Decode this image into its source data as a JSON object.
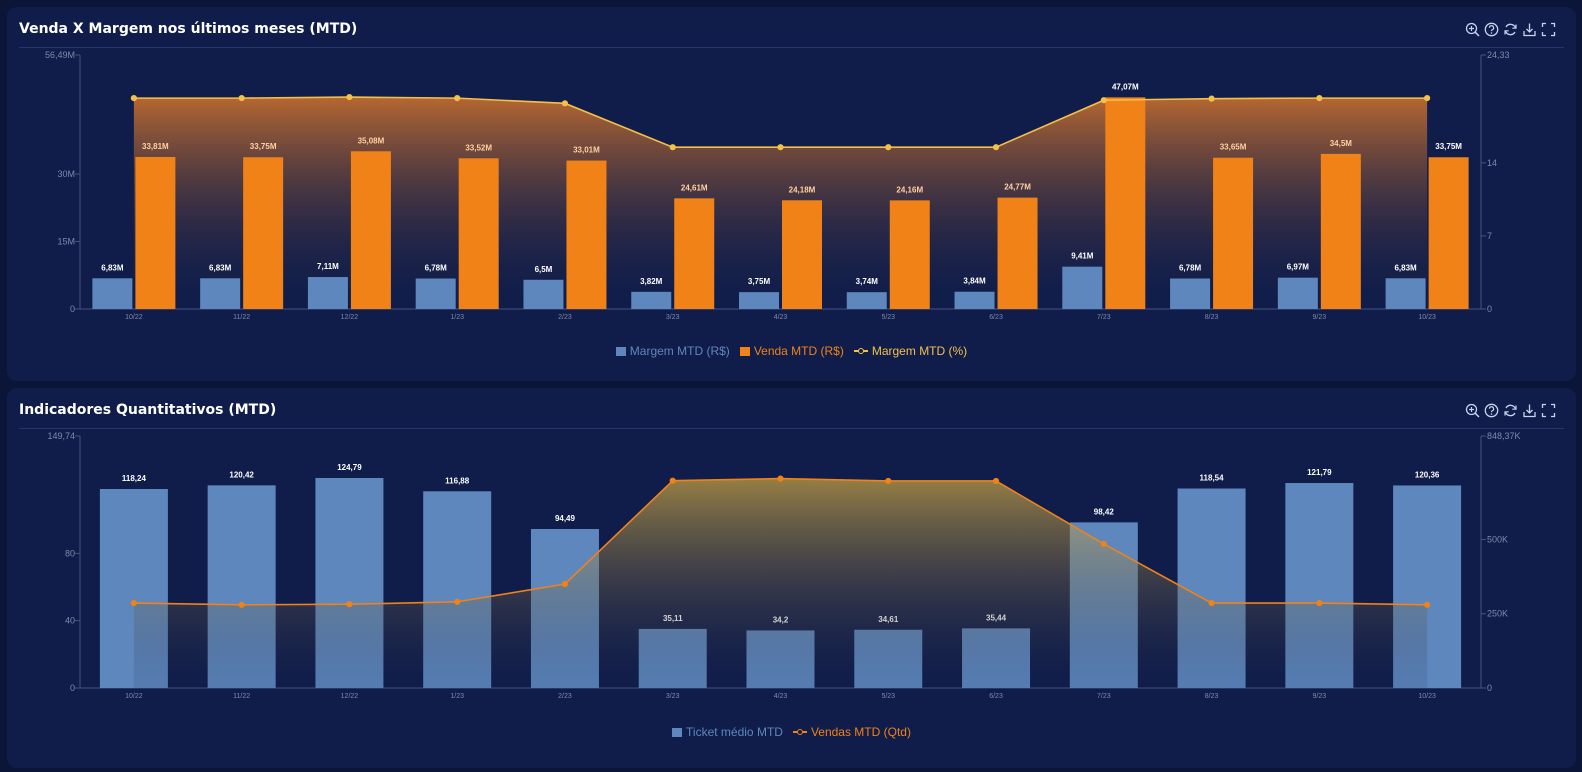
{
  "colors": {
    "margem": "#5d87bd",
    "venda": "#f08218",
    "pct_line": "#f3c04a",
    "ticket": "#5d87bd",
    "vendas_qtd": "#f08218",
    "axis_text": "#7e89ab"
  },
  "icons": [
    "zoom-in-icon",
    "help-icon",
    "refresh-icon",
    "download-icon",
    "fullscreen-icon"
  ],
  "panel1": {
    "title": "Venda X Margem nos últimos meses (MTD)",
    "legend": [
      "Margem MTD (R$)",
      "Venda MTD (R$)",
      "Margem MTD (%)"
    ]
  },
  "panel2": {
    "title": "Indicadores Quantitativos (MTD)",
    "legend": [
      "Ticket médio MTD",
      "Vendas MTD (Qtd)"
    ]
  },
  "chart_data": [
    {
      "type": "bar",
      "title": "Venda X Margem nos últimos meses (MTD)",
      "categories": [
        "10/22",
        "11/22",
        "12/22",
        "1/23",
        "2/23",
        "3/23",
        "4/23",
        "5/23",
        "6/23",
        "7/23",
        "8/23",
        "9/23",
        "10/23"
      ],
      "left_axis": {
        "ticks": [
          "0",
          "15M",
          "30M",
          "56,49M"
        ],
        "ylim": [
          0,
          56.49
        ]
      },
      "right_axis": {
        "ticks": [
          "0",
          "7",
          "14",
          "24,33"
        ],
        "ylim": [
          0,
          24.33
        ]
      },
      "series": [
        {
          "name": "Margem MTD (R$)",
          "type": "bar",
          "axis": "left",
          "values": [
            6.83,
            6.83,
            7.11,
            6.78,
            6.5,
            3.82,
            3.75,
            3.74,
            3.84,
            9.41,
            6.78,
            6.97,
            6.83
          ],
          "labels": [
            "6,83M",
            "6,83M",
            "7,11M",
            "6,78M",
            "6,5M",
            "3,82M",
            "3,75M",
            "3,74M",
            "3,84M",
            "9,41M",
            "6,78M",
            "6,97M",
            "6,83M"
          ]
        },
        {
          "name": "Venda MTD (R$)",
          "type": "bar",
          "axis": "left",
          "values": [
            33.81,
            33.75,
            35.08,
            33.52,
            33.01,
            24.61,
            24.18,
            24.16,
            24.77,
            47.07,
            33.65,
            34.5,
            33.75
          ],
          "labels": [
            "33,81M",
            "33,75M",
            "35,08M",
            "33,52M",
            "33,01M",
            "24,61M",
            "24,18M",
            "24,16M",
            "24,77M",
            "47,07M",
            "33,65M",
            "34,5M",
            "33,75M"
          ]
        },
        {
          "name": "Margem MTD (%)",
          "type": "area-line",
          "axis": "right",
          "values": [
            20.2,
            20.2,
            20.3,
            20.2,
            19.7,
            15.5,
            15.5,
            15.5,
            15.5,
            20.0,
            20.15,
            20.2,
            20.2
          ]
        }
      ]
    },
    {
      "type": "bar",
      "title": "Indicadores Quantitativos (MTD)",
      "categories": [
        "10/22",
        "11/22",
        "12/22",
        "1/23",
        "2/23",
        "3/23",
        "4/23",
        "5/23",
        "6/23",
        "7/23",
        "8/23",
        "9/23",
        "10/23"
      ],
      "left_axis": {
        "ticks": [
          "0",
          "40",
          "80",
          "149,74"
        ],
        "ylim": [
          0,
          149.74
        ]
      },
      "right_axis": {
        "ticks": [
          "0",
          "250K",
          "500K",
          "848,37K"
        ],
        "ylim": [
          0,
          848.37
        ]
      },
      "series": [
        {
          "name": "Ticket médio MTD",
          "type": "bar",
          "axis": "left",
          "values": [
            118.24,
            120.42,
            124.79,
            116.88,
            94.49,
            35.11,
            34.2,
            34.61,
            35.44,
            98.42,
            118.54,
            121.79,
            120.36
          ],
          "labels": [
            "118,24",
            "120,42",
            "124,79",
            "116,88",
            "94,49",
            "35,11",
            "34,2",
            "34,61",
            "35,44",
            "98,42",
            "118,54",
            "121,79",
            "120,36"
          ]
        },
        {
          "name": "Vendas MTD (Qtd)",
          "type": "area-line",
          "axis": "right",
          "values": [
            286,
            280,
            282,
            290,
            350,
            698,
            705,
            697,
            697,
            485,
            286,
            286,
            280
          ]
        }
      ]
    }
  ]
}
